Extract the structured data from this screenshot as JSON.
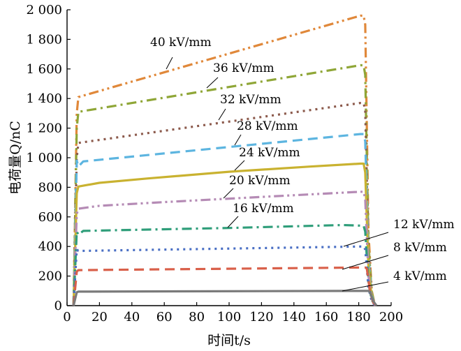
{
  "chart_data": {
    "type": "line",
    "title": "",
    "xlabel": "时间t/s",
    "ylabel": "电荷量Q/nC",
    "xlim": [
      0,
      200
    ],
    "ylim": [
      0,
      2000
    ],
    "xticks": [
      0,
      20,
      40,
      60,
      80,
      100,
      120,
      140,
      160,
      180,
      200
    ],
    "yticks": [
      0,
      200,
      400,
      600,
      800,
      1000,
      1200,
      1400,
      1600,
      1800,
      2000
    ],
    "xtick_labels": [
      "0",
      "20",
      "40",
      "60",
      "80",
      "100",
      "120",
      "140",
      "160",
      "180",
      "200"
    ],
    "ytick_labels": [
      "0",
      "200",
      "400",
      "600",
      "800",
      "1 000",
      "1 200",
      "1 400",
      "1 600",
      "1 800",
      "2 000"
    ],
    "grid": false,
    "legend": "none",
    "series": [
      {
        "name": "40 kV/mm",
        "color": "#E0883A",
        "dash": "dash-dot-dot",
        "x": [
          4,
          6,
          7,
          181,
          183,
          184,
          186,
          188,
          190
        ],
        "y": [
          0,
          1300,
          1410,
          1960,
          1960,
          1900,
          500,
          100,
          0
        ]
      },
      {
        "name": "36 kV/mm",
        "color": "#8FA637",
        "dash": "dash-dot",
        "x": [
          4,
          6,
          7,
          181,
          183,
          184,
          186,
          188,
          190
        ],
        "y": [
          0,
          1200,
          1310,
          1625,
          1625,
          1560,
          420,
          90,
          0
        ]
      },
      {
        "name": "32 kV/mm",
        "color": "#8C5A4C",
        "dash": "dot",
        "x": [
          4,
          6,
          7,
          181,
          183,
          184,
          186,
          188,
          190
        ],
        "y": [
          0,
          1000,
          1100,
          1370,
          1370,
          1320,
          360,
          80,
          0
        ]
      },
      {
        "name": "28 kV/mm",
        "color": "#5DB5E0",
        "dash": "dash",
        "x": [
          4,
          6,
          7,
          10,
          181,
          183,
          184,
          186,
          188,
          190
        ],
        "y": [
          0,
          980,
          940,
          975,
          1160,
          1160,
          1110,
          320,
          70,
          0
        ]
      },
      {
        "name": "24 kV/mm",
        "color": "#C9B230",
        "dash": "solid",
        "x": [
          4,
          6,
          7,
          20,
          50,
          100,
          150,
          181,
          183,
          184,
          186,
          188,
          190
        ],
        "y": [
          0,
          760,
          805,
          830,
          860,
          905,
          940,
          960,
          960,
          900,
          260,
          60,
          0
        ]
      },
      {
        "name": "20 kV/mm",
        "color": "#B58BB5",
        "dash": "dash-dot-dot",
        "x": [
          4,
          6,
          7,
          20,
          60,
          120,
          181,
          183,
          184,
          186,
          188,
          190
        ],
        "y": [
          0,
          620,
          655,
          675,
          700,
          735,
          770,
          770,
          720,
          200,
          50,
          0
        ]
      },
      {
        "name": "16 kV/mm",
        "color": "#2F9E7A",
        "dash": "dash-dot",
        "x": [
          4,
          6,
          7,
          10,
          30,
          100,
          170,
          183,
          184,
          186,
          188,
          190
        ],
        "y": [
          0,
          500,
          480,
          505,
          510,
          525,
          545,
          540,
          500,
          150,
          40,
          0
        ]
      },
      {
        "name": "12 kV/mm",
        "color": "#4A6FC4",
        "dash": "dot",
        "x": [
          4,
          6,
          7,
          183,
          184,
          186,
          188,
          190
        ],
        "y": [
          0,
          380,
          370,
          400,
          380,
          120,
          30,
          0
        ]
      },
      {
        "name": "8 kV/mm",
        "color": "#D9604A",
        "dash": "dash",
        "x": [
          4,
          6,
          7,
          184,
          185,
          187,
          189,
          191
        ],
        "y": [
          0,
          230,
          240,
          258,
          250,
          90,
          20,
          0
        ]
      },
      {
        "name": "4 kV/mm",
        "color": "#7A7A7A",
        "dash": "solid",
        "x": [
          4,
          6,
          7,
          186,
          187,
          189,
          191
        ],
        "y": [
          0,
          90,
          95,
          100,
          90,
          30,
          0
        ]
      }
    ]
  }
}
